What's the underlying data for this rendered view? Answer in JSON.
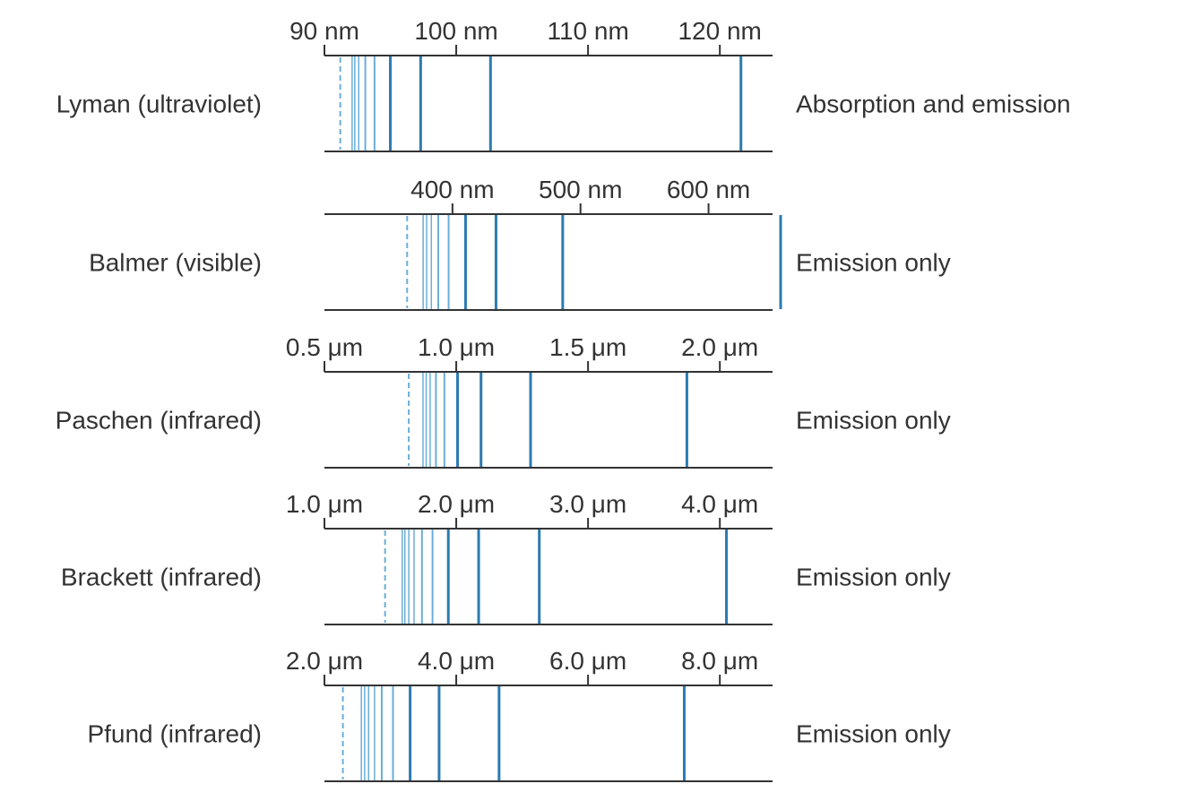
{
  "colors": {
    "line": "#2b7bb0",
    "faint_line": "#6aaed6",
    "axis": "#333333",
    "text": "#333333"
  },
  "series": [
    {
      "name": "Lyman (ultraviolet)",
      "type": "Absorption and emission",
      "unit": "nm",
      "ticks": [
        {
          "value": 90,
          "label": "90 nm"
        },
        {
          "value": 100,
          "label": "100 nm"
        },
        {
          "value": 110,
          "label": "110 nm"
        },
        {
          "value": 120,
          "label": "120 nm"
        }
      ],
      "scale": [
        90,
        124
      ],
      "limit": 91.2,
      "lines": [
        121.6,
        102.6,
        97.3,
        95.0,
        93.8,
        93.1,
        92.6,
        92.3,
        92.1
      ]
    },
    {
      "name": "Balmer (visible)",
      "type": "Emission only",
      "unit": "nm",
      "ticks": [
        {
          "value": 400,
          "label": "400 nm"
        },
        {
          "value": 500,
          "label": "500 nm"
        },
        {
          "value": 600,
          "label": "600 nm"
        }
      ],
      "scale": [
        300,
        650
      ],
      "limit": 364.6,
      "lines": [
        656.3,
        486.1,
        434.0,
        410.2,
        397.0,
        388.9,
        383.5,
        379.8,
        377.1
      ]
    },
    {
      "name": "Paschen (infrared)",
      "type": "Emission only",
      "unit": "μm",
      "ticks": [
        {
          "value": 0.5,
          "label": "0.5 μm"
        },
        {
          "value": 1.0,
          "label": "1.0 μm"
        },
        {
          "value": 1.5,
          "label": "1.5 μm"
        },
        {
          "value": 2.0,
          "label": "2.0 μm"
        }
      ],
      "scale": [
        0.5,
        2.2
      ],
      "limit": 0.82,
      "lines": [
        1.875,
        1.282,
        1.094,
        1.005,
        0.955,
        0.923,
        0.901,
        0.886,
        0.874
      ]
    },
    {
      "name": "Brackett (infrared)",
      "type": "Emission only",
      "unit": "μm",
      "ticks": [
        {
          "value": 1.0,
          "label": "1.0 μm"
        },
        {
          "value": 2.0,
          "label": "2.0 μm"
        },
        {
          "value": 3.0,
          "label": "3.0 μm"
        },
        {
          "value": 4.0,
          "label": "4.0 μm"
        }
      ],
      "scale": [
        1.0,
        4.4
      ],
      "limit": 1.46,
      "lines": [
        4.05,
        2.63,
        2.17,
        1.94,
        1.82,
        1.74,
        1.68,
        1.64,
        1.61,
        1.59
      ]
    },
    {
      "name": "Pfund (infrared)",
      "type": "Emission only",
      "unit": "μm",
      "ticks": [
        {
          "value": 2.0,
          "label": "2.0 μm"
        },
        {
          "value": 4.0,
          "label": "4.0 μm"
        },
        {
          "value": 6.0,
          "label": "6.0 μm"
        },
        {
          "value": 8.0,
          "label": "8.0 μm"
        }
      ],
      "scale": [
        2.0,
        8.8
      ],
      "limit": 2.28,
      "lines": [
        7.46,
        4.65,
        3.74,
        3.3,
        3.04,
        2.87,
        2.76,
        2.67,
        2.61,
        2.56
      ]
    }
  ]
}
